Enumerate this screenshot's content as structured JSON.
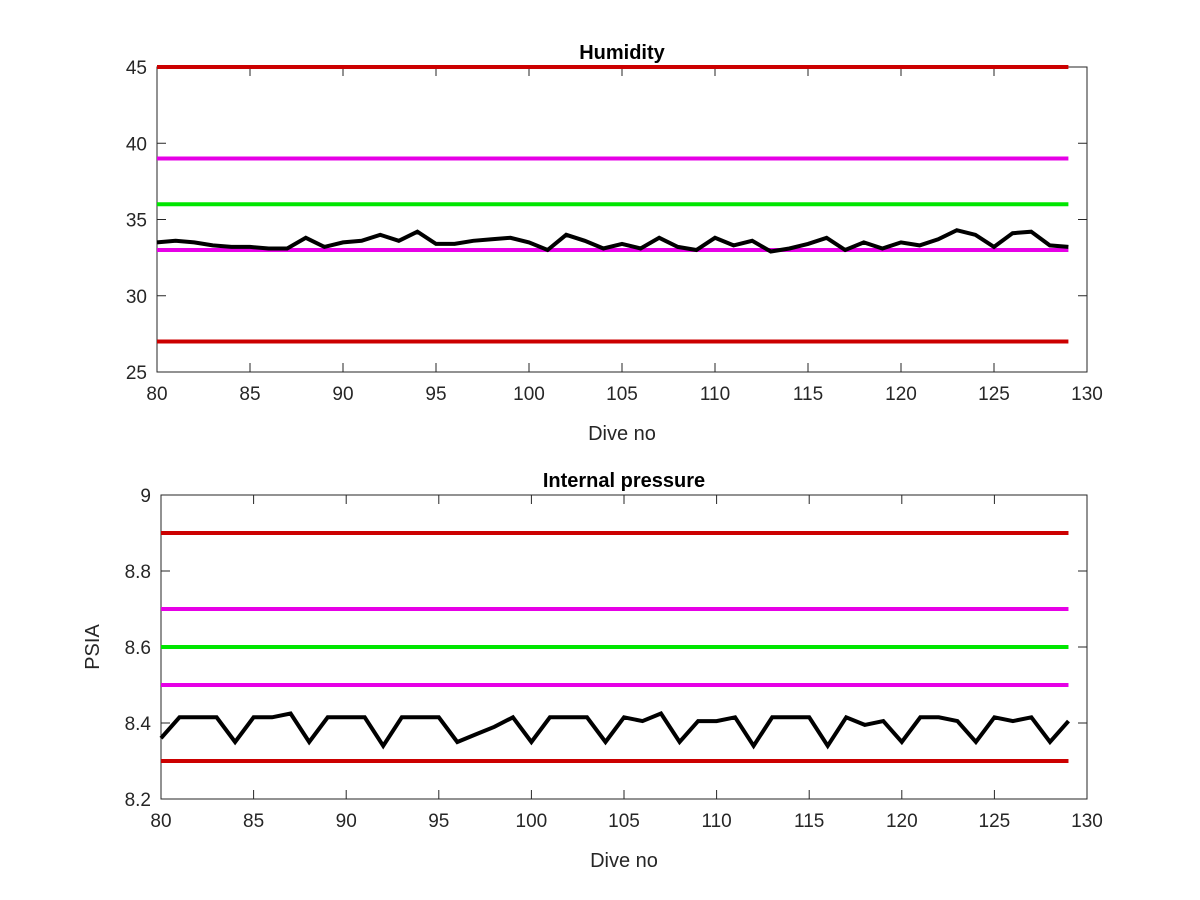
{
  "chart_data": [
    {
      "type": "line",
      "title": "Humidity",
      "xlabel": "Dive no",
      "ylabel": "",
      "xlim": [
        80,
        130
      ],
      "ylim": [
        25,
        45
      ],
      "xticks": [
        "80",
        "85",
        "90",
        "95",
        "100",
        "105",
        "110",
        "115",
        "120",
        "125",
        "130"
      ],
      "yticks": [
        "25",
        "30",
        "35",
        "40",
        "45"
      ],
      "grid": false,
      "legend": "none",
      "reference_lines": [
        {
          "y": 45,
          "color": "#cc0000"
        },
        {
          "y": 39,
          "color": "#e600e6"
        },
        {
          "y": 36,
          "color": "#00e600"
        },
        {
          "y": 33,
          "color": "#e600e6"
        },
        {
          "y": 27,
          "color": "#cc0000"
        }
      ],
      "series": [
        {
          "color": "#000000",
          "x": [
            80,
            81,
            82,
            83,
            84,
            85,
            86,
            87,
            88,
            89,
            90,
            91,
            92,
            93,
            94,
            95,
            96,
            97,
            98,
            99,
            100,
            101,
            102,
            103,
            104,
            105,
            106,
            107,
            108,
            109,
            110,
            111,
            112,
            113,
            114,
            115,
            116,
            117,
            118,
            119,
            120,
            121,
            122,
            123,
            124,
            125,
            126,
            127,
            128,
            129
          ],
          "values": [
            33.5,
            33.6,
            33.5,
            33.3,
            33.2,
            33.2,
            33.1,
            33.1,
            33.8,
            33.2,
            33.5,
            33.6,
            34.0,
            33.6,
            34.2,
            33.4,
            33.4,
            33.6,
            33.7,
            33.8,
            33.5,
            33.0,
            34.0,
            33.6,
            33.1,
            33.4,
            33.1,
            33.8,
            33.2,
            33.0,
            33.8,
            33.3,
            33.6,
            32.9,
            33.1,
            33.4,
            33.8,
            33.0,
            33.5,
            33.1,
            33.5,
            33.3,
            33.7,
            34.3,
            34.0,
            33.2,
            34.1,
            34.2,
            33.3,
            33.2
          ]
        }
      ]
    },
    {
      "type": "line",
      "title": "Internal pressure",
      "xlabel": "Dive no",
      "ylabel": "PSIA",
      "xlim": [
        80,
        130
      ],
      "ylim": [
        8.2,
        9
      ],
      "xticks": [
        "80",
        "85",
        "90",
        "95",
        "100",
        "105",
        "110",
        "115",
        "120",
        "125",
        "130"
      ],
      "yticks": [
        "8.2",
        "8.4",
        "8.6",
        "8.8",
        "9"
      ],
      "grid": false,
      "legend": "none",
      "reference_lines": [
        {
          "y": 8.9,
          "color": "#cc0000"
        },
        {
          "y": 8.7,
          "color": "#e600e6"
        },
        {
          "y": 8.6,
          "color": "#00e600"
        },
        {
          "y": 8.5,
          "color": "#e600e6"
        },
        {
          "y": 8.3,
          "color": "#cc0000"
        }
      ],
      "series": [
        {
          "color": "#000000",
          "x": [
            80,
            81,
            82,
            83,
            84,
            85,
            86,
            87,
            88,
            89,
            90,
            91,
            92,
            93,
            94,
            95,
            96,
            97,
            98,
            99,
            100,
            101,
            102,
            103,
            104,
            105,
            106,
            107,
            108,
            109,
            110,
            111,
            112,
            113,
            114,
            115,
            116,
            117,
            118,
            119,
            120,
            121,
            122,
            123,
            124,
            125,
            126,
            127,
            128,
            129
          ],
          "values": [
            8.36,
            8.415,
            8.415,
            8.415,
            8.35,
            8.415,
            8.415,
            8.425,
            8.35,
            8.415,
            8.415,
            8.415,
            8.34,
            8.415,
            8.415,
            8.415,
            8.35,
            8.37,
            8.39,
            8.415,
            8.35,
            8.415,
            8.415,
            8.415,
            8.35,
            8.415,
            8.405,
            8.425,
            8.35,
            8.405,
            8.405,
            8.415,
            8.34,
            8.415,
            8.415,
            8.415,
            8.34,
            8.415,
            8.395,
            8.405,
            8.35,
            8.415,
            8.415,
            8.405,
            8.35,
            8.415,
            8.405,
            8.415,
            8.35,
            8.405
          ]
        }
      ]
    }
  ]
}
